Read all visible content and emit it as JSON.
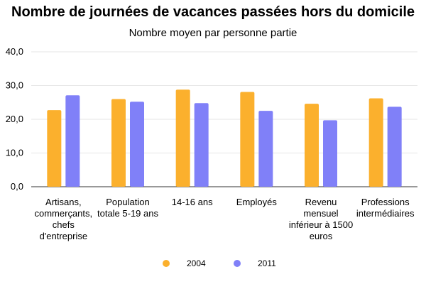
{
  "chart_data": {
    "type": "bar",
    "title": "Nombre de journées de vacances passées hors du domicile",
    "subtitle": "Nombre moyen par personne partie",
    "xlabel": "",
    "ylabel": "",
    "ylim": [
      0,
      40
    ],
    "yticks": [
      "0,0",
      "10,0",
      "20,0",
      "30,0",
      "40,0"
    ],
    "grid": true,
    "legend_position": "bottom",
    "categories": [
      [
        "Artisans,",
        "commerçants,",
        "chefs",
        "d'entreprise"
      ],
      [
        "Population",
        "totale 5-19 ans"
      ],
      [
        "14-16 ans"
      ],
      [
        "Employés"
      ],
      [
        "Revenu",
        "mensuel",
        "inférieur à 1500",
        "euros"
      ],
      [
        "Professions",
        "intermédiaires"
      ]
    ],
    "series": [
      {
        "name": "2004",
        "color": "#FBB02D",
        "values": [
          22.7,
          26.0,
          28.8,
          28.1,
          24.6,
          26.2
        ]
      },
      {
        "name": "2011",
        "color": "#8080F8",
        "values": [
          27.1,
          25.2,
          24.8,
          22.5,
          19.7,
          23.7
        ]
      }
    ]
  }
}
